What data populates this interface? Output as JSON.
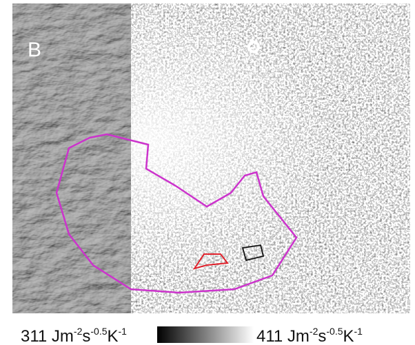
{
  "panel_label": "B",
  "colorbar": {
    "min_label": [
      "311 Jm",
      "-2",
      "s",
      "-0.5",
      "K",
      "-1"
    ],
    "max_label": [
      "411 Jm",
      "-2",
      "s",
      "-0.5",
      "K",
      "-1"
    ]
  }
}
